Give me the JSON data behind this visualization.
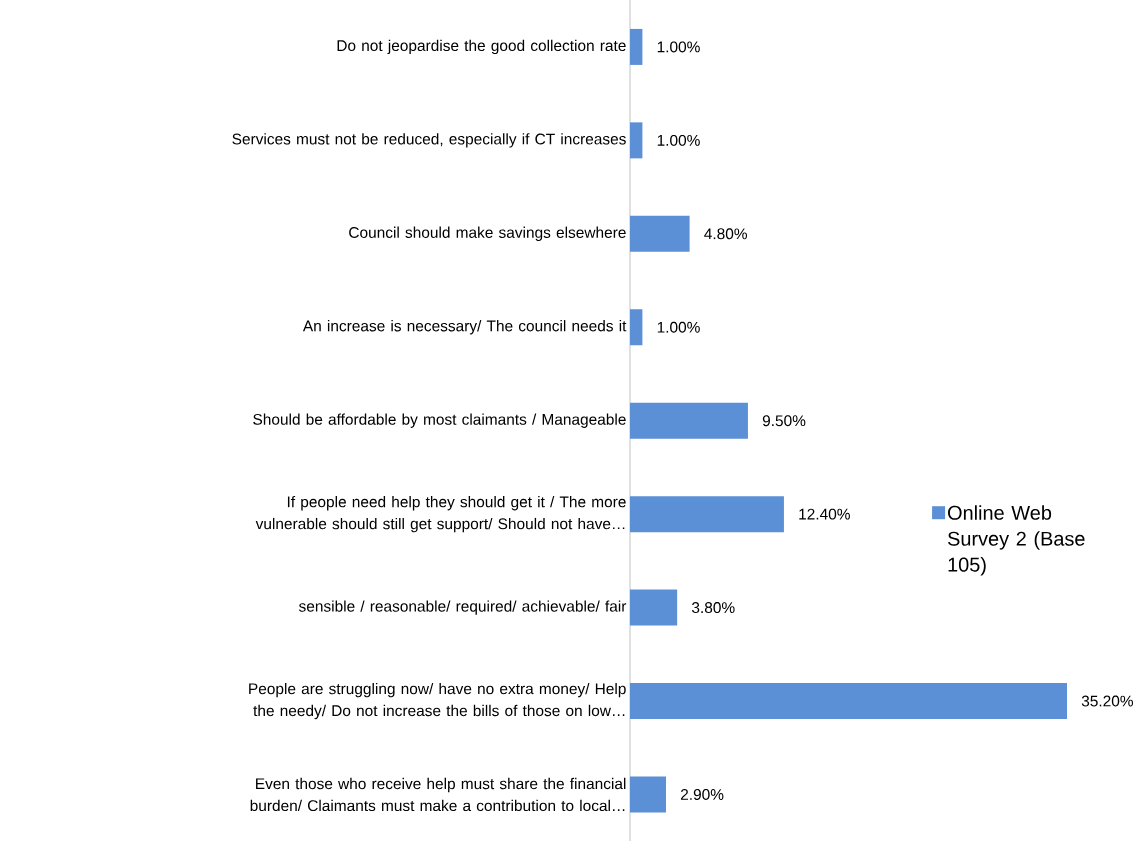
{
  "chart_data": {
    "type": "bar",
    "orientation": "horizontal",
    "categories": [
      "Do not jeopardise the good collection rate",
      "Services must not be reduced, especially if CT increases",
      "Council should make savings elsewhere",
      "An increase is necessary/ The council needs it",
      "Should be affordable by most claimants / Manageable",
      "If people need help they should get it / The more vulnerable should still get support/ Should not have…",
      "sensible / reasonable/ required/ achievable/ fair",
      "People are struggling now/ have no extra money/ Help the needy/ Do not increase the bills of those on low…",
      "Even those who receive help must share the financial burden/ Claimants must make a contribution to local…"
    ],
    "series": [
      {
        "name": "Online Web Survey 2 (Base 105)",
        "color": "#5b8fd6",
        "values": [
          1.0,
          1.0,
          4.8,
          1.0,
          9.5,
          12.4,
          3.8,
          35.2,
          2.9
        ],
        "value_labels": [
          "1.00%",
          "1.00%",
          "4.80%",
          "1.00%",
          "9.50%",
          "12.40%",
          "3.80%",
          "35.20%",
          "2.90%"
        ]
      }
    ],
    "legend": "right"
  }
}
